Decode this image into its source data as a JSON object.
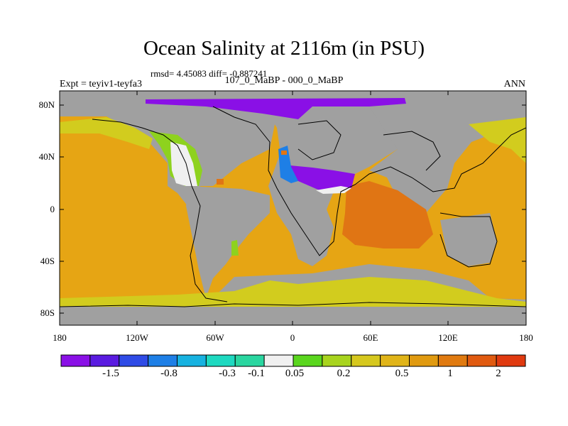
{
  "title": "Ocean Salinity at 2116m (in PSU)",
  "stats_line": "rmsd= 4.45083 diff= -0.887241",
  "experiment": "Expt = teyiv1-teyfa3",
  "period": "107_0_MaBP - 000_0_MaBP",
  "season": "ANN",
  "lat_ticks": [
    "80N",
    "40N",
    "0",
    "40S",
    "80S"
  ],
  "lon_ticks": [
    "180",
    "120W",
    "60W",
    "0",
    "60E",
    "120E",
    "180"
  ],
  "colorbar": {
    "labels": [
      "-1.5",
      "-0.8",
      "-0.3",
      "-0.1",
      "0.05",
      "0.2",
      "0.5",
      "1",
      "2"
    ],
    "colors": [
      "#8a10e6",
      "#5a1be0",
      "#2f4be6",
      "#1e7fe6",
      "#17b2e0",
      "#1ed9c0",
      "#2ad6a0",
      "#f0f0f0",
      "#5ad61e",
      "#a8d41e",
      "#d6c81e",
      "#e0b418",
      "#e09a10",
      "#e07a10",
      "#e05a10",
      "#e03a10"
    ]
  },
  "colors": {
    "land": "#a0a0a0",
    "ocean_main": "#e6a514",
    "ocean_orange": "#e07514",
    "ocean_yellow": "#d2cc1e",
    "ocean_green": "#8ed21e",
    "fresh_purple": "#8a10e6",
    "fresh_blue": "#1e7fe6",
    "white": "#f0f0f0"
  }
}
